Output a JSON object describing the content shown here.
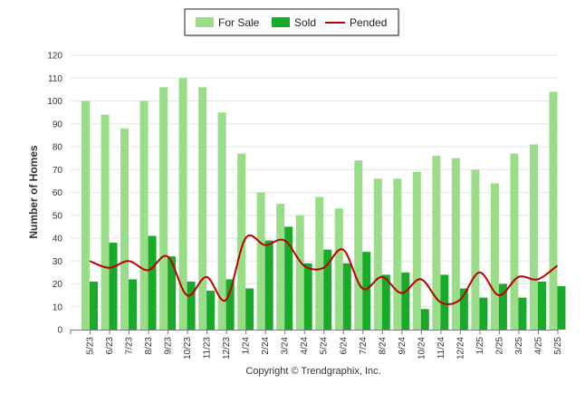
{
  "chart_data": {
    "type": "bar",
    "ylabel": "Number of Homes",
    "ylim": [
      0,
      120
    ],
    "yticks": [
      0,
      10,
      20,
      30,
      40,
      50,
      60,
      70,
      80,
      90,
      100,
      110,
      120
    ],
    "grid": true,
    "legend_position": "top-center",
    "categories": [
      "5/23",
      "6/23",
      "7/23",
      "8/23",
      "9/23",
      "10/23",
      "11/23",
      "12/23",
      "1/24",
      "2/24",
      "3/24",
      "4/24",
      "5/24",
      "6/24",
      "7/24",
      "8/24",
      "9/24",
      "10/24",
      "11/24",
      "12/24",
      "1/25",
      "2/25",
      "3/25",
      "4/25",
      "5/25"
    ],
    "series": [
      {
        "name": "For Sale",
        "type": "bar",
        "color": "#99dd88",
        "values": [
          100,
          94,
          88,
          100,
          106,
          110,
          106,
          95,
          77,
          60,
          55,
          50,
          58,
          53,
          74,
          66,
          66,
          69,
          76,
          75,
          70,
          64,
          77,
          81,
          104
        ]
      },
      {
        "name": "Sold",
        "type": "bar",
        "color": "#1aaa2a",
        "values": [
          21,
          38,
          22,
          41,
          32,
          21,
          17,
          22,
          18,
          39,
          45,
          29,
          35,
          29,
          34,
          24,
          25,
          9,
          24,
          18,
          14,
          20,
          14,
          21,
          19
        ]
      },
      {
        "name": "Pended",
        "type": "line",
        "color": "#bb0000",
        "values": [
          30,
          27,
          30,
          26,
          32,
          15,
          23,
          13,
          40,
          37,
          39,
          28,
          27,
          35,
          18,
          23,
          16,
          22,
          12,
          13,
          25,
          15,
          23,
          22,
          28
        ]
      }
    ],
    "credit": "Copyright © Trendgraphix, Inc."
  }
}
